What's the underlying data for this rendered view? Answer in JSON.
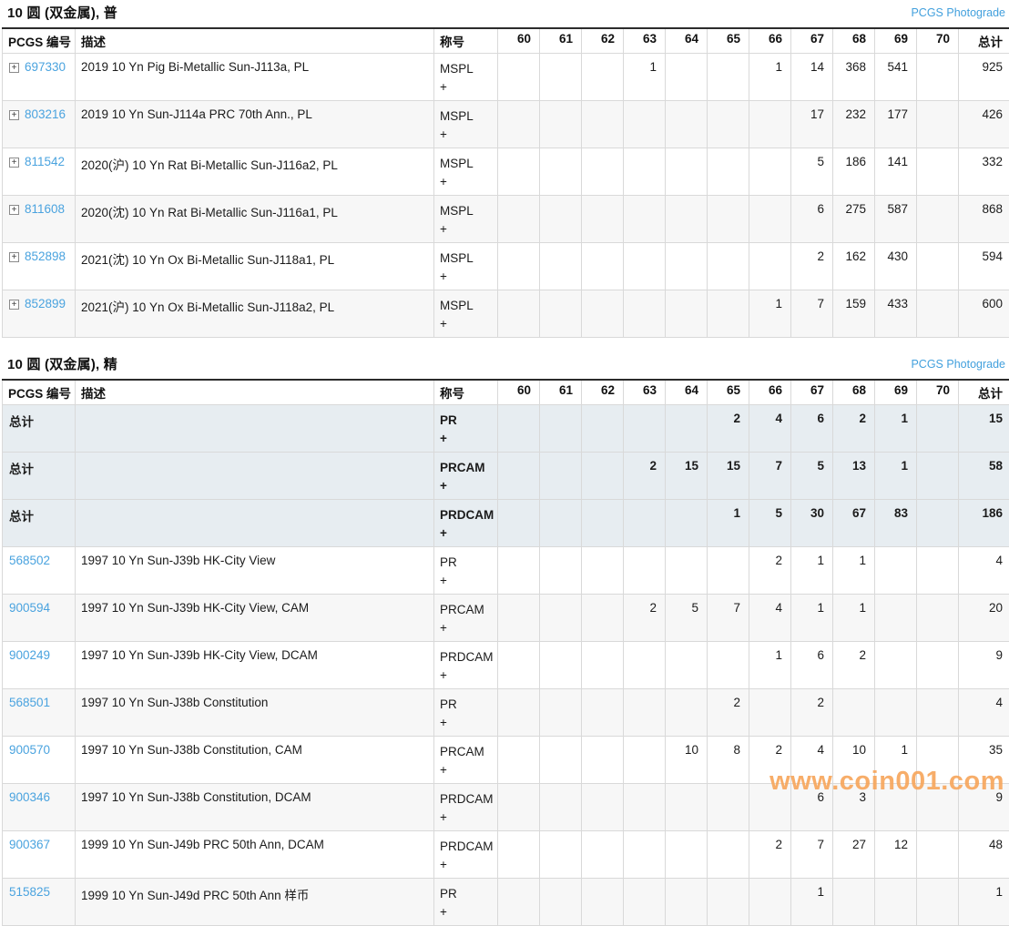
{
  "columns": {
    "pcgs_no": "PCGS 编号",
    "description": "描述",
    "designation": "称号",
    "grades": [
      "60",
      "61",
      "62",
      "63",
      "64",
      "65",
      "66",
      "67",
      "68",
      "69",
      "70"
    ],
    "total": "总计"
  },
  "icons": {
    "expand": "+"
  },
  "colors": {
    "link_blue": "#4aa3df",
    "photograde_link_blue": "#42a0dd",
    "total_row_bg": "#e7edf1",
    "stripe_row_bg": "#f7f7f7",
    "table_top_border": "#2b2b2b",
    "watermark_orange": "#f6a65c"
  },
  "watermark": {
    "text": "www.coin001.com"
  },
  "tables": [
    {
      "title": "10 圆 (双金属), 普",
      "photograde_label": "PCGS Photograde",
      "rows": [
        {
          "is_total": false,
          "expandable": true,
          "pcgs_no": "697330",
          "description": "2019 10 Yn Pig Bi-Metallic Sun-J113a, PL",
          "designation": "MSPL",
          "designation_suffix": "+",
          "grades": [
            "",
            "",
            "",
            "1",
            "",
            "",
            "1",
            "14",
            "368",
            "541",
            ""
          ],
          "total": "925"
        },
        {
          "is_total": false,
          "expandable": true,
          "pcgs_no": "803216",
          "description": "2019 10 Yn Sun-J114a PRC 70th Ann., PL",
          "designation": "MSPL",
          "designation_suffix": "+",
          "grades": [
            "",
            "",
            "",
            "",
            "",
            "",
            "",
            "17",
            "232",
            "177",
            ""
          ],
          "total": "426"
        },
        {
          "is_total": false,
          "expandable": true,
          "pcgs_no": "811542",
          "description": "2020(沪) 10 Yn Rat Bi-Metallic Sun-J116a2, PL",
          "designation": "MSPL",
          "designation_suffix": "+",
          "grades": [
            "",
            "",
            "",
            "",
            "",
            "",
            "",
            "5",
            "186",
            "141",
            ""
          ],
          "total": "332"
        },
        {
          "is_total": false,
          "expandable": true,
          "pcgs_no": "811608",
          "description": "2020(沈) 10 Yn Rat Bi-Metallic Sun-J116a1, PL",
          "designation": "MSPL",
          "designation_suffix": "+",
          "grades": [
            "",
            "",
            "",
            "",
            "",
            "",
            "",
            "6",
            "275",
            "587",
            ""
          ],
          "total": "868"
        },
        {
          "is_total": false,
          "expandable": true,
          "pcgs_no": "852898",
          "description": "2021(沈) 10 Yn Ox Bi-Metallic Sun-J118a1, PL",
          "designation": "MSPL",
          "designation_suffix": "+",
          "grades": [
            "",
            "",
            "",
            "",
            "",
            "",
            "",
            "2",
            "162",
            "430",
            ""
          ],
          "total": "594"
        },
        {
          "is_total": false,
          "expandable": true,
          "pcgs_no": "852899",
          "description": "2021(沪) 10 Yn Ox Bi-Metallic Sun-J118a2, PL",
          "designation": "MSPL",
          "designation_suffix": "+",
          "grades": [
            "",
            "",
            "",
            "",
            "",
            "",
            "1",
            "7",
            "159",
            "433",
            ""
          ],
          "total": "600"
        }
      ]
    },
    {
      "title": "10 圆 (双金属), 精",
      "photograde_label": "PCGS Photograde",
      "rows": [
        {
          "is_total": true,
          "expandable": false,
          "pcgs_no": "总计",
          "description": "",
          "designation": "PR",
          "designation_suffix": "+",
          "grades": [
            "",
            "",
            "",
            "",
            "",
            "2",
            "4",
            "6",
            "2",
            "1",
            ""
          ],
          "total": "15"
        },
        {
          "is_total": true,
          "expandable": false,
          "pcgs_no": "总计",
          "description": "",
          "designation": "PRCAM",
          "designation_suffix": "+",
          "grades": [
            "",
            "",
            "",
            "2",
            "15",
            "15",
            "7",
            "5",
            "13",
            "1",
            ""
          ],
          "total": "58"
        },
        {
          "is_total": true,
          "expandable": false,
          "pcgs_no": "总计",
          "description": "",
          "designation": "PRDCAM",
          "designation_suffix": "+",
          "grades": [
            "",
            "",
            "",
            "",
            "",
            "1",
            "5",
            "30",
            "67",
            "83",
            ""
          ],
          "total": "186"
        },
        {
          "is_total": false,
          "expandable": false,
          "pcgs_no": "568502",
          "description": "1997 10 Yn Sun-J39b HK-City View",
          "designation": "PR",
          "designation_suffix": "+",
          "grades": [
            "",
            "",
            "",
            "",
            "",
            "",
            "2",
            "1",
            "1",
            "",
            ""
          ],
          "total": "4"
        },
        {
          "is_total": false,
          "expandable": false,
          "pcgs_no": "900594",
          "description": "1997 10 Yn Sun-J39b HK-City View, CAM",
          "designation": "PRCAM",
          "designation_suffix": "+",
          "grades": [
            "",
            "",
            "",
            "2",
            "5",
            "7",
            "4",
            "1",
            "1",
            "",
            ""
          ],
          "total": "20"
        },
        {
          "is_total": false,
          "expandable": false,
          "pcgs_no": "900249",
          "description": "1997 10 Yn Sun-J39b HK-City View, DCAM",
          "designation": "PRDCAM",
          "designation_suffix": "+",
          "grades": [
            "",
            "",
            "",
            "",
            "",
            "",
            "1",
            "6",
            "2",
            "",
            ""
          ],
          "total": "9"
        },
        {
          "is_total": false,
          "expandable": false,
          "pcgs_no": "568501",
          "description": "1997 10 Yn Sun-J38b Constitution",
          "designation": "PR",
          "designation_suffix": "+",
          "grades": [
            "",
            "",
            "",
            "",
            "",
            "2",
            "",
            "2",
            "",
            "",
            ""
          ],
          "total": "4"
        },
        {
          "is_total": false,
          "expandable": false,
          "pcgs_no": "900570",
          "description": "1997 10 Yn Sun-J38b Constitution, CAM",
          "designation": "PRCAM",
          "designation_suffix": "+",
          "grades": [
            "",
            "",
            "",
            "",
            "10",
            "8",
            "2",
            "4",
            "10",
            "1",
            ""
          ],
          "total": "35"
        },
        {
          "is_total": false,
          "expandable": false,
          "pcgs_no": "900346",
          "description": "1997 10 Yn Sun-J38b Constitution, DCAM",
          "designation": "PRDCAM",
          "designation_suffix": "+",
          "grades": [
            "",
            "",
            "",
            "",
            "",
            "",
            "",
            "6",
            "3",
            "",
            ""
          ],
          "total": "9"
        },
        {
          "is_total": false,
          "expandable": false,
          "pcgs_no": "900367",
          "description": "1999 10 Yn Sun-J49b PRC 50th Ann, DCAM",
          "designation": "PRDCAM",
          "designation_suffix": "+",
          "grades": [
            "",
            "",
            "",
            "",
            "",
            "",
            "2",
            "7",
            "27",
            "12",
            ""
          ],
          "total": "48"
        },
        {
          "is_total": false,
          "expandable": false,
          "pcgs_no": "515825",
          "description": "1999 10 Yn Sun-J49d PRC 50th Ann 样币",
          "designation": "PR",
          "designation_suffix": "+",
          "grades": [
            "",
            "",
            "",
            "",
            "",
            "",
            "",
            "1",
            "",
            "",
            ""
          ],
          "total": "1"
        }
      ]
    }
  ]
}
